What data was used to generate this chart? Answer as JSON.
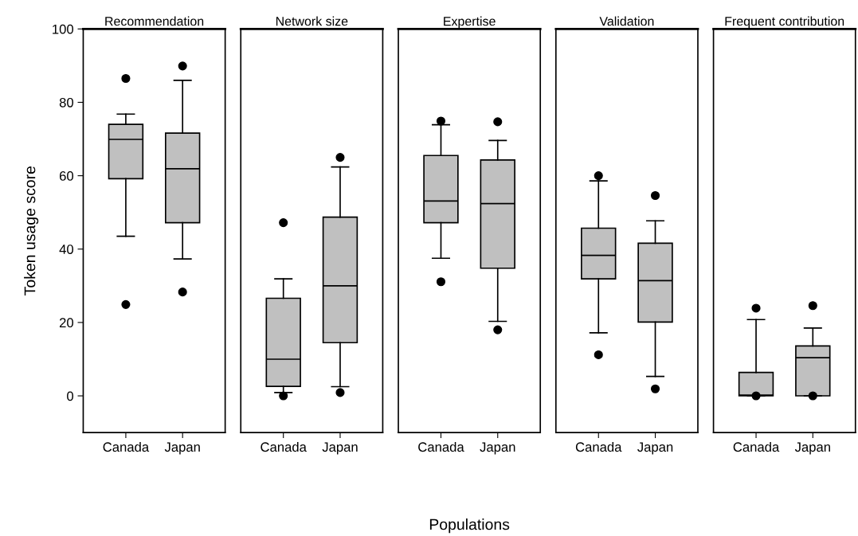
{
  "chart_data": [
    {
      "type": "box",
      "title": "Recommendation",
      "ylabel": "Token usage score",
      "categories": [
        "Canada",
        "Japan"
      ],
      "color": "#c0c0c0",
      "ylim": [
        -10,
        100
      ],
      "yticks": [
        0,
        20,
        40,
        60,
        80,
        100
      ],
      "grid": false,
      "boxes": [
        {
          "low": 43.5,
          "q1": 59.2,
          "median": 69.9,
          "q3": 74.0,
          "high": 76.8,
          "outliers": [
            86.5,
            24.9
          ]
        },
        {
          "low": 37.3,
          "q1": 47.2,
          "median": 61.9,
          "q3": 71.6,
          "high": 86.0,
          "outliers": [
            89.9,
            28.3
          ]
        }
      ]
    },
    {
      "type": "box",
      "title": "Network size",
      "categories": [
        "Canada",
        "Japan"
      ],
      "color": "#c0c0c0",
      "ylim": [
        -10,
        100
      ],
      "yticks": [
        0,
        20,
        40,
        60,
        80,
        100
      ],
      "tick_labels": "x",
      "grid": false,
      "boxes": [
        {
          "low": 0.9,
          "q1": 2.6,
          "median": 10.0,
          "q3": 26.6,
          "high": 31.9,
          "outliers": [
            47.2,
            0
          ]
        },
        {
          "low": 2.5,
          "q1": 14.5,
          "median": 30.0,
          "q3": 48.7,
          "high": 62.4,
          "outliers": [
            65.0,
            0.9
          ]
        }
      ]
    },
    {
      "type": "box",
      "title": "Expertise",
      "xlabel": "Populations",
      "categories": [
        "Canada",
        "Japan"
      ],
      "color": "#c0c0c0",
      "ylim": [
        -10,
        100
      ],
      "yticks": [
        0,
        20,
        40,
        60,
        80,
        100
      ],
      "tick_labels": "x",
      "grid": false,
      "boxes": [
        {
          "low": 37.5,
          "q1": 47.2,
          "median": 53.1,
          "q3": 65.5,
          "high": 73.9,
          "outliers": [
            74.9,
            31.1
          ]
        },
        {
          "low": 20.3,
          "q1": 34.8,
          "median": 52.4,
          "q3": 64.3,
          "high": 69.6,
          "outliers": [
            74.7,
            18.0
          ]
        }
      ]
    },
    {
      "type": "box",
      "title": "Validation",
      "categories": [
        "Canada",
        "Japan"
      ],
      "color": "#c0c0c0",
      "ylim": [
        -10,
        100
      ],
      "yticks": [
        0,
        20,
        40,
        60,
        80,
        100
      ],
      "tick_labels": "x",
      "grid": false,
      "boxes": [
        {
          "low": 17.2,
          "q1": 31.9,
          "median": 38.3,
          "q3": 45.7,
          "high": 58.6,
          "outliers": [
            60.0,
            11.2
          ]
        },
        {
          "low": 5.3,
          "q1": 20.1,
          "median": 31.4,
          "q3": 41.6,
          "high": 47.7,
          "outliers": [
            54.6,
            1.9
          ]
        }
      ]
    },
    {
      "type": "box",
      "title": "Frequent contribution",
      "categories": [
        "Canada",
        "Japan"
      ],
      "color": "#c0c0c0",
      "ylim": [
        -10,
        100
      ],
      "yticks": [
        0,
        20,
        40,
        60,
        80,
        100
      ],
      "tick_labels": "x",
      "grid": false,
      "boxes": [
        {
          "low": 0,
          "q1": 0,
          "median": 0.2,
          "q3": 6.4,
          "high": 20.8,
          "outliers": [
            23.9,
            0
          ]
        },
        {
          "low": 0,
          "q1": 0,
          "median": 10.4,
          "q3": 13.6,
          "high": 18.5,
          "outliers": [
            24.6,
            0
          ]
        }
      ]
    }
  ]
}
